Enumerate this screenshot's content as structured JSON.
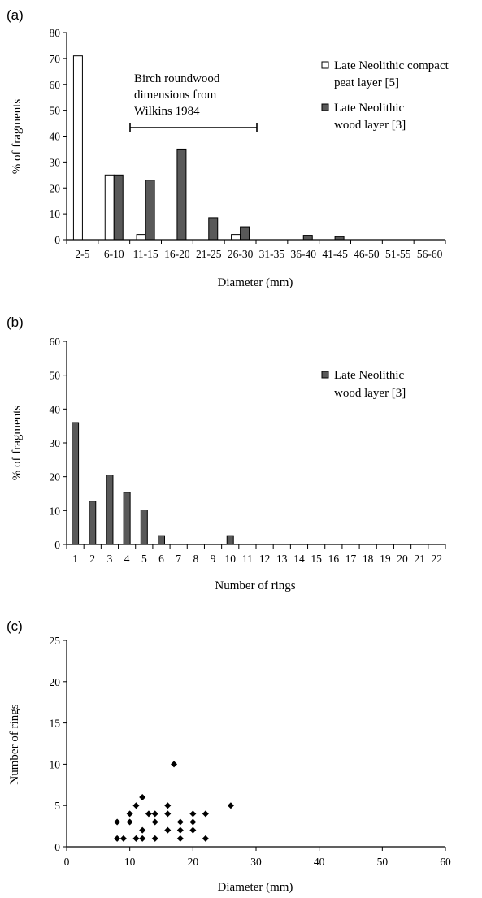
{
  "chart_data": [
    {
      "panel_label": "(a)",
      "type": "bar",
      "xlabel": "Diameter (mm)",
      "ylabel": "% of fragments",
      "ylim": [
        0,
        80
      ],
      "yticks": [
        0,
        10,
        20,
        30,
        40,
        50,
        60,
        70,
        80
      ],
      "categories": [
        "2-5",
        "6-10",
        "11-15",
        "16-20",
        "21-25",
        "26-30",
        "31-35",
        "36-40",
        "41-45",
        "46-50",
        "51-55",
        "56-60"
      ],
      "series": [
        {
          "name_lines": [
            "Late Neolithic compact",
            "peat layer [5]"
          ],
          "color": "#ffffff",
          "values": [
            71,
            25,
            2,
            0,
            0,
            2,
            0,
            0,
            0,
            0,
            0,
            0
          ]
        },
        {
          "name_lines": [
            "Late Neolithic",
            "wood layer [3]"
          ],
          "color": "#595959",
          "values": [
            0,
            25,
            23,
            35,
            8.5,
            5,
            0,
            1.7,
            1.2,
            0,
            0,
            0
          ]
        }
      ],
      "annotation": {
        "lines": [
          "Birch roundwood",
          "dimensions from",
          "Wilkins 1984"
        ],
        "range_x": [
          10.5,
          30.5
        ]
      },
      "legend_position": "top-right",
      "grid": false
    },
    {
      "panel_label": "(b)",
      "type": "bar",
      "xlabel": "Number of rings",
      "ylabel": "% of fragments",
      "ylim": [
        0,
        60
      ],
      "yticks": [
        0,
        10,
        20,
        30,
        40,
        50,
        60
      ],
      "categories": [
        "1",
        "2",
        "3",
        "4",
        "5",
        "6",
        "7",
        "8",
        "9",
        "10",
        "11",
        "12",
        "13",
        "14",
        "15",
        "16",
        "17",
        "18",
        "19",
        "20",
        "21",
        "22"
      ],
      "series": [
        {
          "name_lines": [
            "Late Neolithic",
            "wood layer [3]"
          ],
          "color": "#595959",
          "values": [
            36,
            12.8,
            20.5,
            15.4,
            10.2,
            2.6,
            0,
            0,
            0,
            2.6,
            0,
            0,
            0,
            0,
            0,
            0,
            0,
            0,
            0,
            0,
            0,
            0
          ]
        }
      ],
      "legend_position": "top-right",
      "grid": false
    },
    {
      "panel_label": "(c)",
      "type": "scatter",
      "xlabel": "Diameter (mm)",
      "ylabel": "Number  of rings",
      "xlim": [
        0,
        60
      ],
      "ylim": [
        0,
        25
      ],
      "xticks": [
        0,
        10,
        20,
        30,
        40,
        50,
        60
      ],
      "yticks": [
        0,
        5,
        10,
        15,
        20,
        25
      ],
      "marker": "diamond",
      "points": [
        [
          8,
          3
        ],
        [
          8,
          1
        ],
        [
          9,
          1
        ],
        [
          10,
          4
        ],
        [
          10,
          3
        ],
        [
          11,
          5
        ],
        [
          11,
          1
        ],
        [
          12,
          6
        ],
        [
          12,
          2
        ],
        [
          12,
          1
        ],
        [
          13,
          4
        ],
        [
          14,
          4
        ],
        [
          14,
          3
        ],
        [
          14,
          1
        ],
        [
          16,
          5
        ],
        [
          16,
          4
        ],
        [
          16,
          2
        ],
        [
          17,
          10
        ],
        [
          18,
          3
        ],
        [
          18,
          2
        ],
        [
          18,
          1
        ],
        [
          20,
          4
        ],
        [
          20,
          3
        ],
        [
          20,
          2
        ],
        [
          22,
          4
        ],
        [
          22,
          1
        ],
        [
          26,
          5
        ]
      ],
      "grid": false
    }
  ]
}
